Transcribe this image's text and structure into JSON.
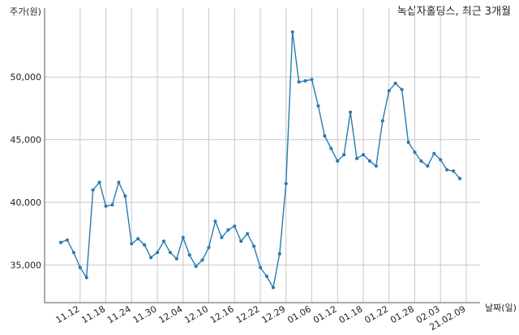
{
  "chart_data": {
    "type": "line",
    "title": "녹십자홀딩스, 최근 3개월",
    "ylabel": "주가(원)",
    "xlabel": "날짜(일)",
    "ylim": [
      32000,
      55500
    ],
    "y_ticks": [
      35000,
      40000,
      45000,
      50000
    ],
    "y_tick_labels": [
      "35,000",
      "40,000",
      "45,000",
      "50,000"
    ],
    "grid": true,
    "x_tick_labels": [
      "11.12",
      "11.18",
      "11.24",
      "11.30",
      "12.04",
      "12.10",
      "12.16",
      "12.22",
      "12.29",
      "01.06",
      "01.12",
      "01.18",
      "01.22",
      "01.28",
      "02.03",
      "21.02.09"
    ],
    "x_tick_positions": [
      3,
      7,
      11,
      15,
      19,
      23,
      27,
      31,
      35,
      39,
      43,
      47,
      51,
      55,
      59,
      63
    ],
    "series": [
      {
        "color": "#2b7bb0",
        "values": [
          36800,
          37000,
          36000,
          34800,
          34000,
          41000,
          41600,
          39700,
          39800,
          41600,
          40500,
          36700,
          37100,
          36600,
          35600,
          36000,
          36900,
          36000,
          35500,
          37200,
          35800,
          34900,
          35400,
          36400,
          38500,
          37200,
          37800,
          38100,
          36900,
          37500,
          36500,
          34800,
          34100,
          33200,
          35900,
          41500,
          53600,
          49600,
          49700,
          49800,
          47700,
          45300,
          44300,
          43300,
          43800,
          47200,
          43500,
          43800,
          43300,
          42900,
          46500,
          48900,
          49500,
          49000,
          44800,
          44000,
          43300,
          42900,
          43900,
          43400,
          42600,
          42500,
          41900
        ]
      }
    ]
  }
}
